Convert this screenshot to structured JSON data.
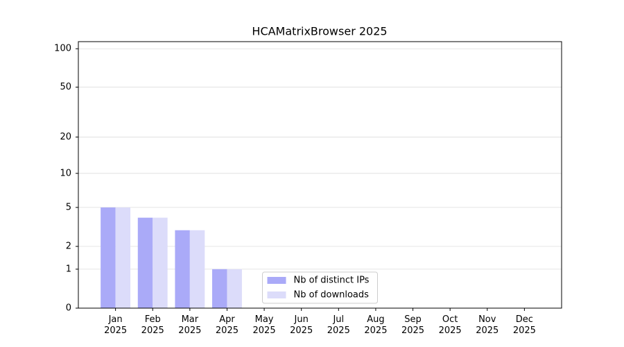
{
  "chart_data": {
    "type": "bar",
    "title": "HCAMatrixBrowser 2025",
    "categories": [
      "Jan\n2025",
      "Feb\n2025",
      "Mar\n2025",
      "Apr\n2025",
      "May\n2025",
      "Jun\n2025",
      "Jul\n2025",
      "Aug\n2025",
      "Sep\n2025",
      "Oct\n2025",
      "Nov\n2025",
      "Dec\n2025"
    ],
    "series": [
      {
        "name": "Nb of distinct IPs",
        "color": "#aaaaf8",
        "values": [
          5,
          4,
          3,
          1,
          0,
          0,
          0,
          0,
          0,
          0,
          0,
          0
        ]
      },
      {
        "name": "Nb of downloads",
        "color": "#dcdcfa",
        "values": [
          5,
          4,
          3,
          1,
          0,
          0,
          0,
          0,
          0,
          0,
          0,
          0
        ]
      }
    ],
    "y_scale": "log1p",
    "ylim": [
      0,
      113.6
    ],
    "yticks": [
      0,
      1,
      2,
      5,
      10,
      20,
      50,
      100
    ],
    "grid": true,
    "legend": "lower center"
  }
}
